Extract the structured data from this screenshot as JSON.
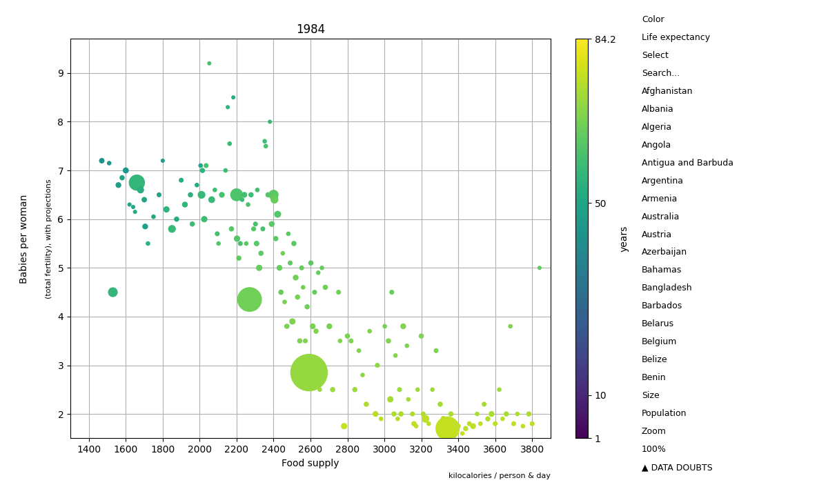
{
  "chart_data": {
    "type": "scatter",
    "title": "1984",
    "xlabel": "Food supply",
    "ylabel": "Babies per woman",
    "xlim": [
      1300,
      3900
    ],
    "ylim": [
      1.5,
      9.7
    ],
    "xticks": [
      1400,
      1600,
      1800,
      2000,
      2200,
      2400,
      2600,
      2800,
      3000,
      3200,
      3400,
      3600,
      3800
    ],
    "yticks": [
      2,
      3,
      4,
      5,
      6,
      7,
      8,
      9
    ],
    "grid": true,
    "x": [
      1470,
      1510,
      1530,
      1560,
      1580,
      1600,
      1620,
      1640,
      1650,
      1660,
      1680,
      1700,
      1705,
      1720,
      1750,
      1780,
      1800,
      1820,
      1850,
      1875,
      1900,
      1920,
      1950,
      1960,
      1985,
      2005,
      2010,
      2015,
      2025,
      2035,
      2052,
      2065,
      2082,
      2095,
      2102,
      2120,
      2140,
      2152,
      2162,
      2172,
      2182,
      2200,
      2202,
      2212,
      2220,
      2230,
      2242,
      2252,
      2262,
      2270,
      2278,
      2292,
      2302,
      2308,
      2312,
      2322,
      2332,
      2342,
      2352,
      2358,
      2370,
      2380,
      2390,
      2400,
      2405,
      2412,
      2422,
      2432,
      2440,
      2450,
      2460,
      2472,
      2480,
      2490,
      2502,
      2510,
      2520,
      2530,
      2542,
      2552,
      2560,
      2572,
      2582,
      2592,
      2602,
      2612,
      2622,
      2630,
      2642,
      2650,
      2662,
      2680,
      2702,
      2720,
      2752,
      2760,
      2782,
      2800,
      2820,
      2840,
      2862,
      2882,
      2902,
      2920,
      2952,
      2962,
      2982,
      3002,
      3022,
      3032,
      3040,
      3052,
      3060,
      3072,
      3082,
      3090,
      3102,
      3122,
      3130,
      3152,
      3160,
      3172,
      3180,
      3200,
      3210,
      3222,
      3240,
      3260,
      3280,
      3302,
      3320,
      3342,
      3360,
      3380,
      3400,
      3422,
      3440,
      3460,
      3480,
      3502,
      3520,
      3540,
      3560,
      3580,
      3600,
      3622,
      3640,
      3660,
      3682,
      3700,
      3720,
      3750,
      3782,
      3800,
      3840
    ],
    "values": [
      7.2,
      7.15,
      4.5,
      6.7,
      6.85,
      7.0,
      6.3,
      6.25,
      6.15,
      6.75,
      6.6,
      6.4,
      5.85,
      5.5,
      6.05,
      6.5,
      7.2,
      6.2,
      5.8,
      6.0,
      6.8,
      6.3,
      6.5,
      5.9,
      6.7,
      7.1,
      6.5,
      7.0,
      6.0,
      7.1,
      9.2,
      6.4,
      6.6,
      5.7,
      5.5,
      6.5,
      7.0,
      8.3,
      7.55,
      5.8,
      8.5,
      6.5,
      5.6,
      5.2,
      5.5,
      6.4,
      6.5,
      5.5,
      6.3,
      4.35,
      6.5,
      5.8,
      5.9,
      5.5,
      6.6,
      5.0,
      5.3,
      5.8,
      7.6,
      7.5,
      6.5,
      8.0,
      5.9,
      6.5,
      6.4,
      5.6,
      6.1,
      5.0,
      4.5,
      5.3,
      4.3,
      3.8,
      5.7,
      5.1,
      3.9,
      5.5,
      4.8,
      4.4,
      3.5,
      5.0,
      4.6,
      3.5,
      4.2,
      2.85,
      5.1,
      3.8,
      4.5,
      3.7,
      4.9,
      2.5,
      5.0,
      4.6,
      3.8,
      2.5,
      4.5,
      3.5,
      1.75,
      3.6,
      3.5,
      2.5,
      3.3,
      2.8,
      2.2,
      3.7,
      2.0,
      3.0,
      1.9,
      3.8,
      3.5,
      2.3,
      4.5,
      2.0,
      3.2,
      1.9,
      2.5,
      2.0,
      3.8,
      3.4,
      2.3,
      2.0,
      1.8,
      1.75,
      2.5,
      3.6,
      2.0,
      1.9,
      1.8,
      2.5,
      3.3,
      2.2,
      1.9,
      1.7,
      2.0,
      1.8,
      1.75,
      1.6,
      1.7,
      1.8,
      1.75,
      2.0,
      1.8,
      2.2,
      1.9,
      2.0,
      1.8,
      2.5,
      1.9,
      2.0,
      3.8,
      1.8,
      2.0,
      1.75,
      2.0,
      1.8,
      5.0
    ],
    "color_values": [
      43,
      45,
      56,
      47,
      48,
      45,
      50,
      51,
      52,
      56,
      53,
      50,
      48,
      54,
      51,
      50,
      48,
      55,
      57,
      52,
      53,
      55,
      54,
      58,
      52,
      50,
      57,
      55,
      58,
      60,
      60,
      57,
      58,
      59,
      62,
      60,
      58,
      55,
      57,
      62,
      53,
      61,
      62,
      64,
      60,
      58,
      59,
      63,
      60,
      66,
      58,
      62,
      60,
      63,
      59,
      65,
      63,
      60,
      58,
      60,
      62,
      57,
      63,
      63,
      65,
      63,
      62,
      65,
      65,
      66,
      67,
      67,
      63,
      64,
      68,
      63,
      66,
      67,
      68,
      65,
      66,
      68,
      66,
      71,
      63,
      67,
      65,
      68,
      65,
      72,
      65,
      66,
      67,
      72,
      66,
      68,
      77,
      67,
      68,
      72,
      68,
      70,
      74,
      68,
      75,
      70,
      76,
      67,
      68,
      73,
      65,
      74,
      69,
      75,
      72,
      74,
      68,
      68,
      73,
      74,
      76,
      76,
      72,
      68,
      74,
      76,
      76,
      72,
      68,
      73,
      75,
      77,
      74,
      76,
      76,
      77,
      76,
      76,
      76,
      74,
      76,
      73,
      75,
      74,
      76,
      72,
      75,
      74,
      68,
      76,
      74,
      76,
      74,
      76,
      64
    ],
    "sizes": [
      8,
      5,
      30,
      9,
      7,
      10,
      4,
      4,
      4,
      90,
      14,
      8,
      9,
      5,
      5,
      6,
      4,
      11,
      18,
      7,
      6,
      9,
      7,
      7,
      5,
      5,
      18,
      7,
      11,
      6,
      4,
      13,
      5,
      6,
      5,
      9,
      5,
      4,
      5,
      7,
      4,
      55,
      11,
      7,
      6,
      5,
      9,
      5,
      5,
      220,
      7,
      6,
      6,
      8,
      5,
      11,
      7,
      6,
      5,
      5,
      7,
      4,
      9,
      32,
      18,
      7,
      14,
      9,
      7,
      5,
      5,
      7,
      5,
      6,
      11,
      7,
      9,
      7,
      7,
      6,
      5,
      6,
      7,
      520,
      7,
      9,
      6,
      7,
      5,
      5,
      5,
      7,
      9,
      7,
      6,
      5,
      11,
      7,
      6,
      7,
      5,
      5,
      7,
      5,
      9,
      6,
      5,
      5,
      7,
      11,
      6,
      7,
      5,
      5,
      6,
      7,
      9,
      5,
      5,
      6,
      7,
      5,
      5,
      7,
      6,
      18,
      5,
      5,
      6,
      7,
      9,
      210,
      7,
      6,
      6,
      5,
      7,
      6,
      9,
      5,
      5,
      6,
      7,
      9,
      6,
      5,
      5,
      7,
      5,
      6,
      5,
      5,
      7,
      6,
      4
    ],
    "colorbar": {
      "label": "years",
      "range": [
        1,
        84.2
      ],
      "ticks": [
        1,
        10,
        50,
        84.2
      ]
    },
    "annotations": [
      "(total fertility), with projections",
      "kilocalories / person & day",
      "Color",
      "Life expectancy",
      "Select",
      "Search...",
      "Afghanistan",
      "Albania",
      "Algeria",
      "Angola",
      "Antigua and Barbuda",
      "Argentina",
      "Armenia",
      "Australia",
      "Austria",
      "Azerbaijan",
      "Bahamas",
      "Bangladesh",
      "Barbados",
      "Belarus",
      "Belgium",
      "Belize",
      "Benin",
      "Size",
      "Population",
      "Zoom",
      "100%",
      "▲ DATA DOUBTS"
    ]
  }
}
